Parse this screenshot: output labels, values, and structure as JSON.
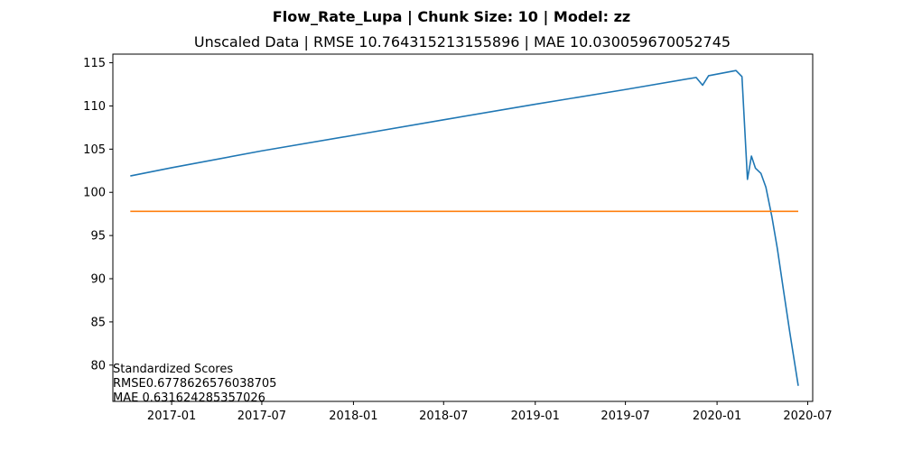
{
  "chart_data": {
    "type": "line",
    "suptitle": "Flow_Rate_Lupa | Chunk Size: 10 | Model: zz",
    "title": "Unscaled Data | RMSE 10.764315213155896 | MAE 10.030059670052745",
    "xlabel": "",
    "ylabel": "",
    "x_ticks": [
      "2017-01",
      "2017-07",
      "2018-01",
      "2018-07",
      "2019-01",
      "2019-07",
      "2020-01",
      "2020-07"
    ],
    "y_ticks": [
      80,
      85,
      90,
      95,
      100,
      105,
      110,
      115
    ],
    "xlim": [
      "2016-09-05",
      "2020-07-11"
    ],
    "ylim": [
      75.8,
      116.0
    ],
    "grid": false,
    "series": [
      {
        "color": "#1f77b4",
        "points": [
          [
            "2016-10-10",
            101.9
          ],
          [
            "2017-01-01",
            102.85
          ],
          [
            "2017-07-01",
            104.8
          ],
          [
            "2018-01-01",
            106.6
          ],
          [
            "2018-07-01",
            108.4
          ],
          [
            "2019-01-01",
            110.2
          ],
          [
            "2019-07-01",
            111.9
          ],
          [
            "2019-11-20",
            113.3
          ],
          [
            "2019-12-03",
            112.4
          ],
          [
            "2019-12-15",
            113.5
          ],
          [
            "2020-02-08",
            114.1
          ],
          [
            "2020-02-20",
            113.4
          ],
          [
            "2020-03-02",
            101.5
          ],
          [
            "2020-03-10",
            104.2
          ],
          [
            "2020-03-18",
            102.8
          ],
          [
            "2020-03-29",
            102.2
          ],
          [
            "2020-04-08",
            100.6
          ],
          [
            "2020-04-20",
            97.2
          ],
          [
            "2020-05-01",
            93.5
          ],
          [
            "2020-05-13",
            88.8
          ],
          [
            "2020-05-26",
            83.8
          ],
          [
            "2020-06-12",
            77.6
          ]
        ]
      },
      {
        "color": "#ff7f0e",
        "points": [
          [
            "2016-10-10",
            97.8
          ],
          [
            "2020-06-12",
            97.8
          ]
        ]
      }
    ],
    "annotation": {
      "lines": [
        "Standardized Scores",
        "RMSE0.6778626576038705",
        "MAE 0.631624285357026"
      ]
    }
  }
}
